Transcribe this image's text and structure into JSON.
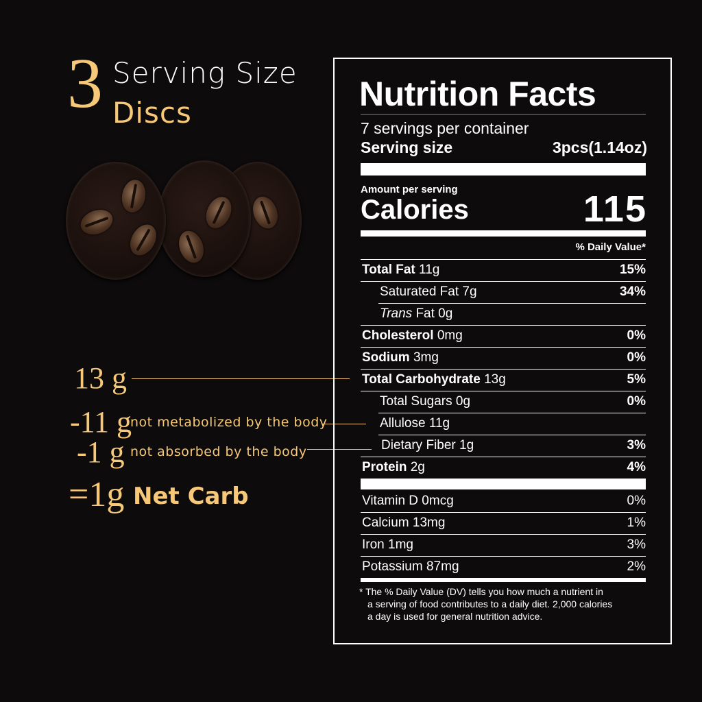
{
  "serving": {
    "count": "3",
    "line1": "Serving Size",
    "line2": "Discs"
  },
  "carbs": {
    "total": "13 g",
    "allulose": "-11 g",
    "allulose_note": "not metabolized by the body",
    "fiber": "-1 g",
    "fiber_note": "not absorbed by the body",
    "net": "=1g",
    "net_label": "Net Carb"
  },
  "label": {
    "title": "Nutrition Facts",
    "servings": "7 servings per container",
    "serving_size_label": "Serving size",
    "serving_size_value": "3pcs(1.14oz)",
    "amount_per_serving": "Amount per serving",
    "calories_label": "Calories",
    "calories_value": "115",
    "dv_header": "% Daily Value*",
    "nutrients": [
      {
        "name": "Total Fat",
        "amount": "11g",
        "dv": "15%",
        "bold": true,
        "indent": 0
      },
      {
        "name": "Saturated Fat",
        "amount": "7g",
        "dv": "34%",
        "bold": false,
        "indent": 1
      },
      {
        "name": "Trans",
        "amount": "Fat 0g",
        "dv": "",
        "bold": false,
        "indent": 1,
        "italic": true
      },
      {
        "name": "Cholesterol",
        "amount": "0mg",
        "dv": "0%",
        "bold": true,
        "indent": 0
      },
      {
        "name": "Sodium",
        "amount": "3mg",
        "dv": "0%",
        "bold": true,
        "indent": 0
      },
      {
        "name": "Total Carbohydrate",
        "amount": "13g",
        "dv": "5%",
        "bold": true,
        "indent": 0
      },
      {
        "name": "Total Sugars",
        "amount": "0g",
        "dv": "0%",
        "bold": false,
        "indent": 1
      },
      {
        "name": "Allulose",
        "amount": "11g",
        "dv": "",
        "bold": false,
        "indent": 1
      },
      {
        "name": "Dietary Fiber",
        "amount": "1g",
        "dv": "3%",
        "bold": false,
        "indent": 2
      },
      {
        "name": "Protein",
        "amount": "2g",
        "dv": "4%",
        "bold": true,
        "indent": 0
      }
    ],
    "vitamins": [
      {
        "name": "Vitamin D",
        "amount": "0mcg",
        "dv": "0%"
      },
      {
        "name": "Calcium",
        "amount": "13mg",
        "dv": "1%"
      },
      {
        "name": "Iron",
        "amount": "1mg",
        "dv": "3%"
      },
      {
        "name": "Potassium",
        "amount": "87mg",
        "dv": "2%"
      }
    ],
    "footnote_1": "* The % Daily Value (DV) tells you how much a nutrient in",
    "footnote_2": "a serving of food contributes to a daily diet. 2,000 calories",
    "footnote_3": "a day is used for general nutrition advice."
  },
  "colors": {
    "accent": "#f6c878",
    "background": "#0d0b0b"
  }
}
